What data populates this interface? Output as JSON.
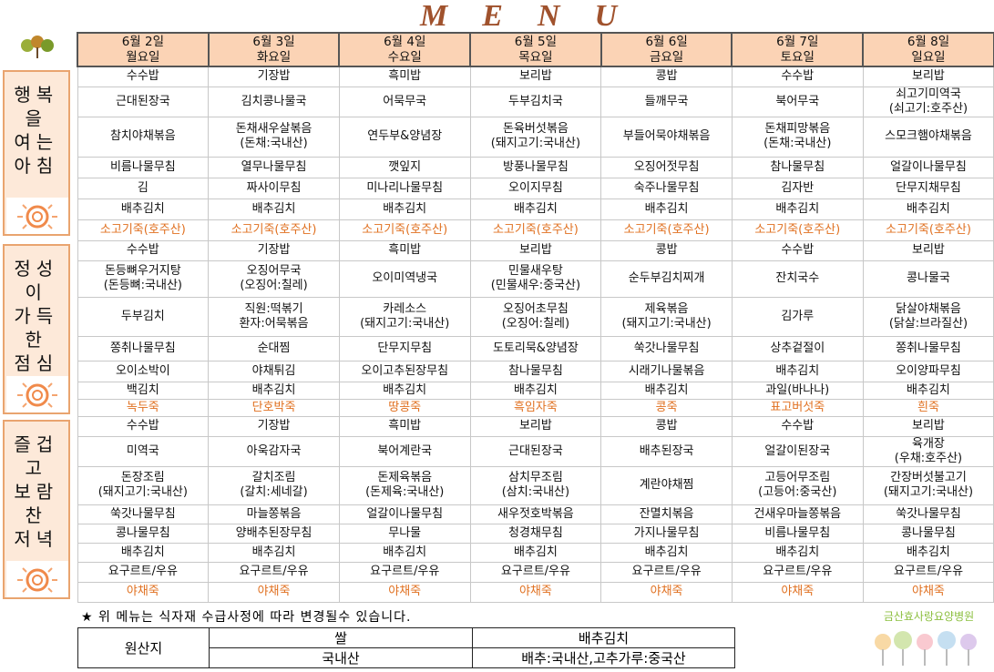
{
  "header": {
    "title": "MENU"
  },
  "days": [
    {
      "date": "6월 2일",
      "weekday": "월요일"
    },
    {
      "date": "6월 3일",
      "weekday": "화요일"
    },
    {
      "date": "6월 4일",
      "weekday": "수요일"
    },
    {
      "date": "6월 5일",
      "weekday": "목요일"
    },
    {
      "date": "6월 6일",
      "weekday": "금요일"
    },
    {
      "date": "6월 7일",
      "weekday": "토요일"
    },
    {
      "date": "6월 8일",
      "weekday": "일요일"
    }
  ],
  "meals": [
    {
      "label": "행복\n을\n여는\n아침",
      "rows": [
        [
          "수수밥",
          "기장밥",
          "흑미밥",
          "보리밥",
          "콩밥",
          "수수밥",
          "보리밥"
        ],
        [
          "근대된장국",
          "김치콩나물국",
          "어묵무국",
          "두부김치국",
          "들깨무국",
          "북어무국",
          "쇠고기미역국\n(쇠고기:호주산)"
        ],
        [
          "참치야채볶음",
          "돈채새우살볶음\n(돈채:국내산)",
          "연두부&양념장",
          "돈육버섯볶음\n(돼지고기:국내산)",
          "부들어묵야채볶음",
          "돈채피망볶음\n(돈채:국내산)",
          "스모크햄야채볶음"
        ],
        [
          "비름나물무침",
          "열무나물무침",
          "깻잎지",
          "방풍나물무침",
          "오징어젓무침",
          "참나물무침",
          "얼갈이나물무침"
        ],
        [
          "김",
          "짜사이무침",
          "미나리나물무침",
          "오이지무침",
          "숙주나물무침",
          "김자반",
          "단무지채무침"
        ],
        [
          "배추김치",
          "배추김치",
          "배추김치",
          "배추김치",
          "배추김치",
          "배추김치",
          "배추김치"
        ],
        [
          "소고기죽(호주산)",
          "소고기죽(호주산)",
          "소고기죽(호주산)",
          "소고기죽(호주산)",
          "소고기죽(호주산)",
          "소고기죽(호주산)",
          "소고기죽(호주산)"
        ]
      ]
    },
    {
      "label": "정성\n이\n가득\n한\n점심",
      "rows": [
        [
          "수수밥",
          "기장밥",
          "흑미밥",
          "보리밥",
          "콩밥",
          "수수밥",
          "보리밥"
        ],
        [
          "돈등뼈우거지탕\n(돈등뼈:국내산)",
          "오징어무국\n(오징어:칠레)",
          "오이미역냉국",
          "민물새우탕\n(민물새우:중국산)",
          "순두부김치찌개",
          "잔치국수",
          "콩나물국"
        ],
        [
          "두부김치",
          "직원:떡볶기\n환자:어묵볶음",
          "카레소스\n(돼지고기:국내산)",
          "오징어초무침\n(오징어:칠레)",
          "제육볶음\n(돼지고기:국내산)",
          "김가루",
          "닭살야채볶음\n(닭살:브라질산)"
        ],
        [
          "쫑취나물무침",
          "순대찜",
          "단무지무침",
          "도토리묵&양념장",
          "쑥갓나물무침",
          "상추겉절이",
          "쫑취나물무침"
        ],
        [
          "오이소박이",
          "야채튀김",
          "오이고추된장무침",
          "참나물무침",
          "시래기나물볶음",
          "배추김치",
          "오이양파무침"
        ],
        [
          "백김치",
          "배추김치",
          "배추김치",
          "배추김치",
          "배추김치",
          "과일(바나나)",
          "배추김치"
        ],
        [
          "녹두죽",
          "단호박죽",
          "땅콩죽",
          "흑임자죽",
          "콩죽",
          "표고버섯죽",
          "흰죽"
        ]
      ]
    },
    {
      "label": "즐겁\n고\n보람\n찬\n저녁",
      "rows": [
        [
          "수수밥",
          "기장밥",
          "흑미밥",
          "보리밥",
          "콩밥",
          "수수밥",
          "보리밥"
        ],
        [
          "미역국",
          "아욱감자국",
          "북어계란국",
          "근대된장국",
          "배추된장국",
          "얼갈이된장국",
          "육개장\n(우채:호주산)"
        ],
        [
          "돈장조림\n(돼지고기:국내산)",
          "갈치조림\n(갈치:세네갈)",
          "돈제육볶음\n(돈제육:국내산)",
          "삼치무조림\n(삼치:국내산)",
          "계란야채찜",
          "고등어무조림\n(고등어:중국산)",
          "간장버섯불고기\n(돼지고기:국내산)"
        ],
        [
          "쑥갓나물무침",
          "마늘쫑볶음",
          "얼갈이나물무침",
          "새우젓호박볶음",
          "잔멸치볶음",
          "건새우마늘쫑볶음",
          "쑥갓나물무침"
        ],
        [
          "콩나물무침",
          "양배추된장무침",
          "무나물",
          "청경채무침",
          "가지나물무침",
          "비름나물무침",
          "콩나물무침"
        ],
        [
          "배추김치",
          "배추김치",
          "배추김치",
          "배추김치",
          "배추김치",
          "배추김치",
          "배추김치"
        ],
        [
          "요구르트/우유",
          "요구르트/우유",
          "요구르트/우유",
          "요구르트/우유",
          "요구르트/우유",
          "요구르트/우유",
          "요구르트/우유"
        ],
        [
          "야채죽",
          "야채죽",
          "야채죽",
          "야채죽",
          "야채죽",
          "야채죽",
          "야채죽"
        ]
      ]
    }
  ],
  "footer": {
    "notice": "★ 위 메뉴는 식자재 수급사정에 따라 변경될수 있습니다.",
    "origin": {
      "label": "원산지",
      "items": [
        {
          "name": "쌀",
          "origin": "국내산"
        },
        {
          "name": "배추김치",
          "origin": "배추:국내산,고추가루:중국산"
        }
      ]
    },
    "hospital": "금산효사랑요양병원"
  }
}
